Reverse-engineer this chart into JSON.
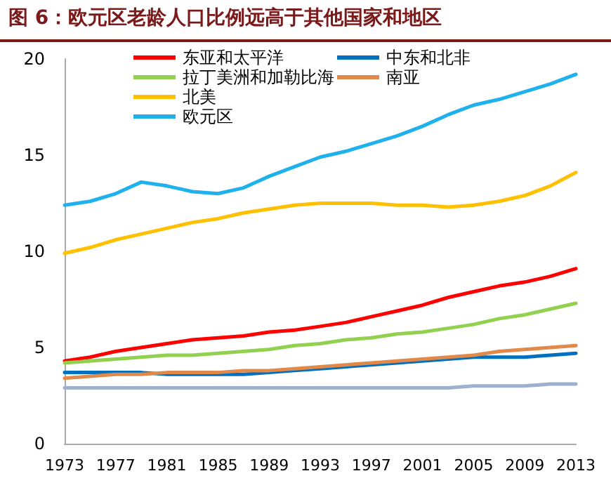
{
  "chart_data": {
    "type": "line",
    "title": "图 6：欧元区老龄人口比例远高于其他国家和地区",
    "x": [
      1973,
      1975,
      1977,
      1979,
      1981,
      1983,
      1985,
      1987,
      1989,
      1991,
      1993,
      1995,
      1997,
      1999,
      2001,
      2003,
      2005,
      2007,
      2009,
      2011,
      2013
    ],
    "xlim": [
      1973,
      2013
    ],
    "xticks": [
      1973,
      1977,
      1981,
      1985,
      1989,
      1993,
      1997,
      2001,
      2005,
      2009,
      2013
    ],
    "ylim": [
      0,
      20
    ],
    "yticks": [
      0,
      5,
      10,
      15,
      20
    ],
    "series": [
      {
        "name": "东亚和太平洋",
        "color": "#ff0000",
        "values": [
          4.3,
          4.5,
          4.8,
          5.0,
          5.2,
          5.4,
          5.5,
          5.6,
          5.8,
          5.9,
          6.1,
          6.3,
          6.6,
          6.9,
          7.2,
          7.6,
          7.9,
          8.2,
          8.4,
          8.7,
          9.1
        ]
      },
      {
        "name": "拉丁美洲和加勒比海",
        "color": "#92d050",
        "values": [
          4.2,
          4.3,
          4.4,
          4.5,
          4.6,
          4.6,
          4.7,
          4.8,
          4.9,
          5.1,
          5.2,
          5.4,
          5.5,
          5.7,
          5.8,
          6.0,
          6.2,
          6.5,
          6.7,
          7.0,
          7.3
        ]
      },
      {
        "name": "北美",
        "color": "#ffc000",
        "values": [
          9.9,
          10.2,
          10.6,
          10.9,
          11.2,
          11.5,
          11.7,
          12.0,
          12.2,
          12.4,
          12.5,
          12.5,
          12.5,
          12.4,
          12.4,
          12.3,
          12.4,
          12.6,
          12.9,
          13.4,
          14.1
        ]
      },
      {
        "name": "欧元区",
        "color": "#1fb1ec",
        "values": [
          12.4,
          12.6,
          13.0,
          13.6,
          13.4,
          13.1,
          13.0,
          13.3,
          13.9,
          14.4,
          14.9,
          15.2,
          15.6,
          16.0,
          16.5,
          17.1,
          17.6,
          17.9,
          18.3,
          18.7,
          19.2
        ]
      },
      {
        "name": "中东和北非",
        "color": "#0070c0",
        "values": [
          3.7,
          3.7,
          3.7,
          3.7,
          3.6,
          3.6,
          3.6,
          3.6,
          3.7,
          3.8,
          3.9,
          4.0,
          4.1,
          4.2,
          4.3,
          4.4,
          4.5,
          4.5,
          4.5,
          4.6,
          4.7
        ]
      },
      {
        "name": "南亚",
        "color": "#e0894a",
        "values": [
          3.4,
          3.5,
          3.6,
          3.6,
          3.7,
          3.7,
          3.7,
          3.8,
          3.8,
          3.9,
          4.0,
          4.1,
          4.2,
          4.3,
          4.4,
          4.5,
          4.6,
          4.8,
          4.9,
          5.0,
          5.1
        ]
      },
      {
        "color": "#9eb0cf",
        "values": [
          2.9,
          2.9,
          2.9,
          2.9,
          2.9,
          2.9,
          2.9,
          2.9,
          2.9,
          2.9,
          2.9,
          2.9,
          2.9,
          2.9,
          2.9,
          2.9,
          3.0,
          3.0,
          3.0,
          3.1,
          3.1
        ]
      }
    ],
    "grid": false,
    "legend": "top",
    "marker": "none",
    "line_style": "solid"
  }
}
